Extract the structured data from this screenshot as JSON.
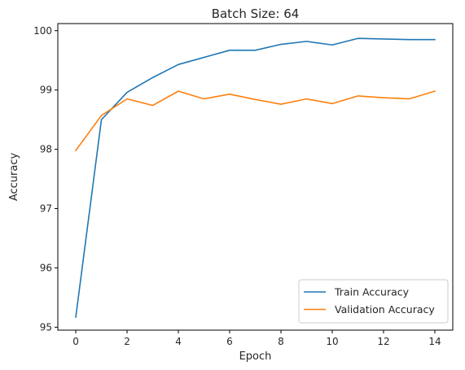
{
  "chart_data": {
    "type": "line",
    "title": "Batch Size: 64",
    "xlabel": "Epoch",
    "ylabel": "Accuracy",
    "x": [
      0,
      1,
      2,
      3,
      4,
      5,
      6,
      7,
      8,
      9,
      10,
      11,
      12,
      13,
      14
    ],
    "xlim": [
      -0.7,
      14.7
    ],
    "ylim": [
      94.95,
      100.12
    ],
    "xticks": [
      0,
      2,
      4,
      6,
      8,
      10,
      12,
      14
    ],
    "yticks": [
      95,
      96,
      97,
      98,
      99,
      100
    ],
    "grid": false,
    "legend_position": "lower-right",
    "series": [
      {
        "name": "Train Accuracy",
        "color": "#1f77b4",
        "values": [
          95.17,
          98.5,
          98.96,
          99.21,
          99.43,
          99.55,
          99.67,
          99.67,
          99.77,
          99.82,
          99.76,
          99.87,
          99.86,
          99.85,
          99.85
        ]
      },
      {
        "name": "Validation Accuracy",
        "color": "#ff7f0e",
        "values": [
          97.98,
          98.57,
          98.85,
          98.74,
          98.98,
          98.85,
          98.93,
          98.84,
          98.76,
          98.85,
          98.77,
          98.9,
          98.87,
          98.85,
          98.98
        ]
      }
    ]
  }
}
